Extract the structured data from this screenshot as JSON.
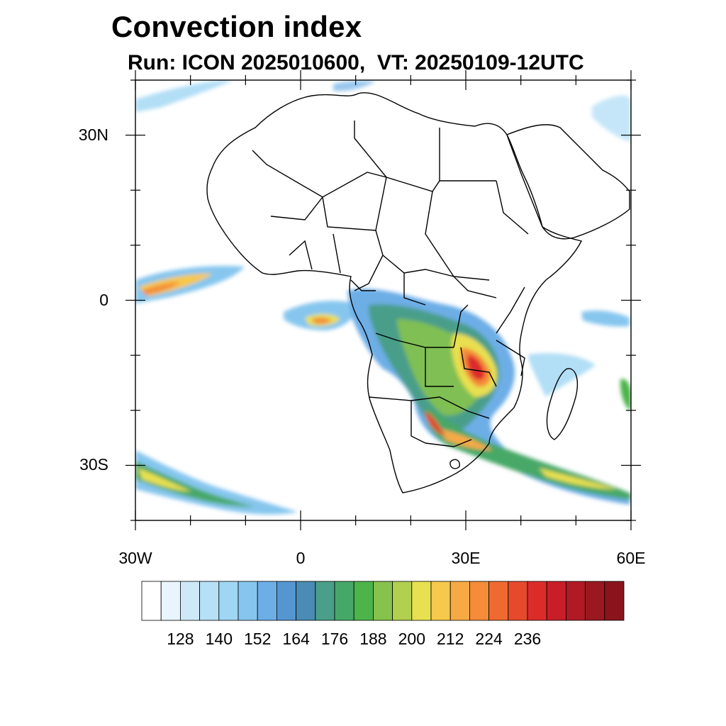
{
  "title": "Convection index",
  "subtitle": "Run: ICON 2025010600,  VT: 20250109-12UTC",
  "map": {
    "lon_range": [
      -30,
      60
    ],
    "lat_range": [
      -40,
      40
    ],
    "y_ticks": [
      {
        "value": 30,
        "label": "30N"
      },
      {
        "value": 0,
        "label": "0"
      },
      {
        "value": -30,
        "label": "30S"
      }
    ],
    "x_ticks": [
      {
        "value": -30,
        "label": "30W"
      },
      {
        "value": 0,
        "label": "0"
      },
      {
        "value": 30,
        "label": "30E"
      },
      {
        "value": 60,
        "label": "60E"
      }
    ]
  },
  "colorbar": {
    "labels": [
      "128",
      "140",
      "152",
      "164",
      "176",
      "188",
      "200",
      "212",
      "224",
      "236"
    ],
    "colors": [
      "#ffffff",
      "#e8f5fc",
      "#cde9f8",
      "#b6e0f6",
      "#9fd6f4",
      "#86c6ee",
      "#6daee6",
      "#5596d0",
      "#4a8cb4",
      "#4a9e8a",
      "#46a868",
      "#4cb44a",
      "#86c24c",
      "#b0d04e",
      "#e8e050",
      "#f6c84c",
      "#f6aa44",
      "#f48c3a",
      "#ee6a30",
      "#e64a2c",
      "#dc2c2a",
      "#c81e28",
      "#b01a24",
      "#9a1820",
      "#8a141c"
    ]
  }
}
